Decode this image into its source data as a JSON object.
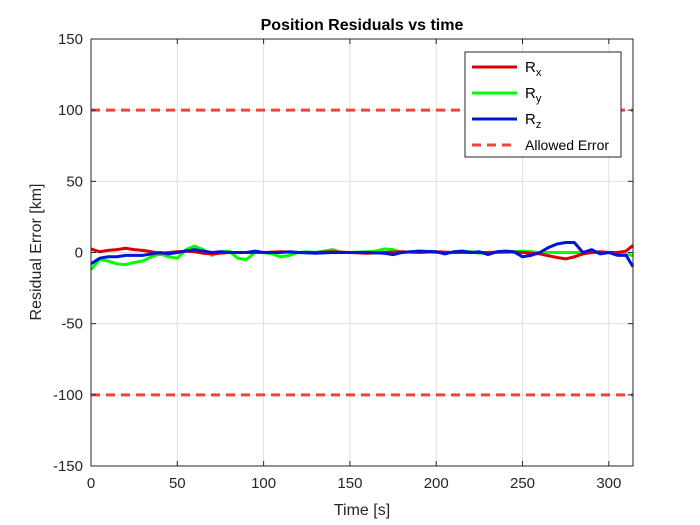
{
  "chart_data": {
    "type": "line",
    "title": "Position Residuals vs time",
    "xlabel": "Time [s]",
    "ylabel": "Residual Error [km]",
    "xlim": [
      0,
      314
    ],
    "ylim": [
      -150,
      150
    ],
    "xticks": [
      0,
      50,
      100,
      150,
      200,
      250,
      300
    ],
    "yticks": [
      -150,
      -100,
      -50,
      0,
      50,
      100,
      150
    ],
    "grid": true,
    "legend_position": "top-right",
    "series": [
      {
        "name": "R",
        "subscript": "x",
        "color": "#d90000",
        "style": "solid",
        "points": [
          [
            0,
            2.5
          ],
          [
            5,
            0.5
          ],
          [
            10,
            1.5
          ],
          [
            15,
            2
          ],
          [
            20,
            3
          ],
          [
            25,
            2
          ],
          [
            30,
            1.5
          ],
          [
            35,
            0.5
          ],
          [
            40,
            -0.5
          ],
          [
            45,
            0
          ],
          [
            50,
            0.5
          ],
          [
            55,
            1
          ],
          [
            60,
            0.5
          ],
          [
            65,
            -0.5
          ],
          [
            70,
            -1
          ],
          [
            80,
            0
          ],
          [
            90,
            0
          ],
          [
            100,
            0
          ],
          [
            110,
            0.5
          ],
          [
            120,
            0
          ],
          [
            130,
            0
          ],
          [
            140,
            0.5
          ],
          [
            150,
            0
          ],
          [
            160,
            -0.5
          ],
          [
            170,
            0
          ],
          [
            180,
            0.5
          ],
          [
            190,
            0
          ],
          [
            200,
            0.5
          ],
          [
            210,
            0
          ],
          [
            220,
            0
          ],
          [
            230,
            0
          ],
          [
            240,
            0.5
          ],
          [
            250,
            0
          ],
          [
            260,
            -1
          ],
          [
            270,
            -3.5
          ],
          [
            275,
            -4.5
          ],
          [
            280,
            -3
          ],
          [
            285,
            -1
          ],
          [
            290,
            0
          ],
          [
            295,
            0.5
          ],
          [
            300,
            0
          ],
          [
            305,
            0
          ],
          [
            310,
            1
          ],
          [
            314,
            5
          ]
        ]
      },
      {
        "name": "R",
        "subscript": "y",
        "color": "#00ff00",
        "style": "solid",
        "points": [
          [
            0,
            -12
          ],
          [
            5,
            -5
          ],
          [
            10,
            -6
          ],
          [
            15,
            -8
          ],
          [
            20,
            -8.5
          ],
          [
            25,
            -7
          ],
          [
            30,
            -6
          ],
          [
            35,
            -3
          ],
          [
            40,
            -1
          ],
          [
            45,
            -3
          ],
          [
            50,
            -4
          ],
          [
            55,
            2
          ],
          [
            60,
            4.5
          ],
          [
            65,
            2
          ],
          [
            70,
            -2
          ],
          [
            75,
            0.5
          ],
          [
            80,
            1
          ],
          [
            85,
            -4
          ],
          [
            90,
            -5
          ],
          [
            95,
            0
          ],
          [
            100,
            0
          ],
          [
            105,
            -1
          ],
          [
            110,
            -3
          ],
          [
            115,
            -2
          ],
          [
            120,
            0
          ],
          [
            125,
            0.5
          ],
          [
            130,
            0
          ],
          [
            135,
            1
          ],
          [
            140,
            2
          ],
          [
            145,
            0
          ],
          [
            150,
            0
          ],
          [
            160,
            0.5
          ],
          [
            165,
            1
          ],
          [
            170,
            2.5
          ],
          [
            175,
            2
          ],
          [
            180,
            0
          ],
          [
            190,
            1
          ],
          [
            200,
            0
          ],
          [
            210,
            0
          ],
          [
            215,
            1
          ],
          [
            220,
            0.5
          ],
          [
            225,
            -0.5
          ],
          [
            230,
            0
          ],
          [
            240,
            0
          ],
          [
            250,
            1
          ],
          [
            260,
            0
          ],
          [
            270,
            0
          ],
          [
            280,
            0
          ],
          [
            290,
            0
          ],
          [
            300,
            0
          ],
          [
            314,
            -2
          ]
        ]
      },
      {
        "name": "R",
        "subscript": "z",
        "color": "#0014d9",
        "style": "solid",
        "points": [
          [
            0,
            -8
          ],
          [
            5,
            -4
          ],
          [
            10,
            -3
          ],
          [
            15,
            -3
          ],
          [
            20,
            -2
          ],
          [
            30,
            -2
          ],
          [
            35,
            -1
          ],
          [
            40,
            0
          ],
          [
            45,
            -1
          ],
          [
            50,
            0
          ],
          [
            55,
            1
          ],
          [
            60,
            2
          ],
          [
            65,
            1
          ],
          [
            70,
            0
          ],
          [
            75,
            0.5
          ],
          [
            80,
            0
          ],
          [
            90,
            0
          ],
          [
            95,
            1
          ],
          [
            100,
            0
          ],
          [
            110,
            0
          ],
          [
            115,
            0.5
          ],
          [
            120,
            0
          ],
          [
            130,
            -0.5
          ],
          [
            140,
            0
          ],
          [
            150,
            0
          ],
          [
            160,
            0
          ],
          [
            170,
            -0.5
          ],
          [
            175,
            -1.5
          ],
          [
            180,
            0
          ],
          [
            190,
            1
          ],
          [
            200,
            0.5
          ],
          [
            205,
            -1
          ],
          [
            210,
            0.5
          ],
          [
            215,
            1
          ],
          [
            220,
            0
          ],
          [
            225,
            0.5
          ],
          [
            230,
            -1.5
          ],
          [
            235,
            0.5
          ],
          [
            240,
            1
          ],
          [
            245,
            0.5
          ],
          [
            250,
            -3
          ],
          [
            255,
            -2
          ],
          [
            260,
            0
          ],
          [
            265,
            3.5
          ],
          [
            270,
            6
          ],
          [
            275,
            7
          ],
          [
            280,
            7
          ],
          [
            285,
            0
          ],
          [
            290,
            2
          ],
          [
            295,
            -1
          ],
          [
            300,
            0
          ],
          [
            305,
            -2
          ],
          [
            310,
            -2
          ],
          [
            314,
            -10
          ]
        ]
      },
      {
        "name": "Allowed Error",
        "subscript": "",
        "color": "#f0443a",
        "style": "dashed",
        "segments": [
          [
            [
              0,
              100
            ],
            [
              314,
              100
            ]
          ],
          [
            [
              0,
              -100
            ],
            [
              314,
              -100
            ]
          ]
        ]
      }
    ]
  }
}
